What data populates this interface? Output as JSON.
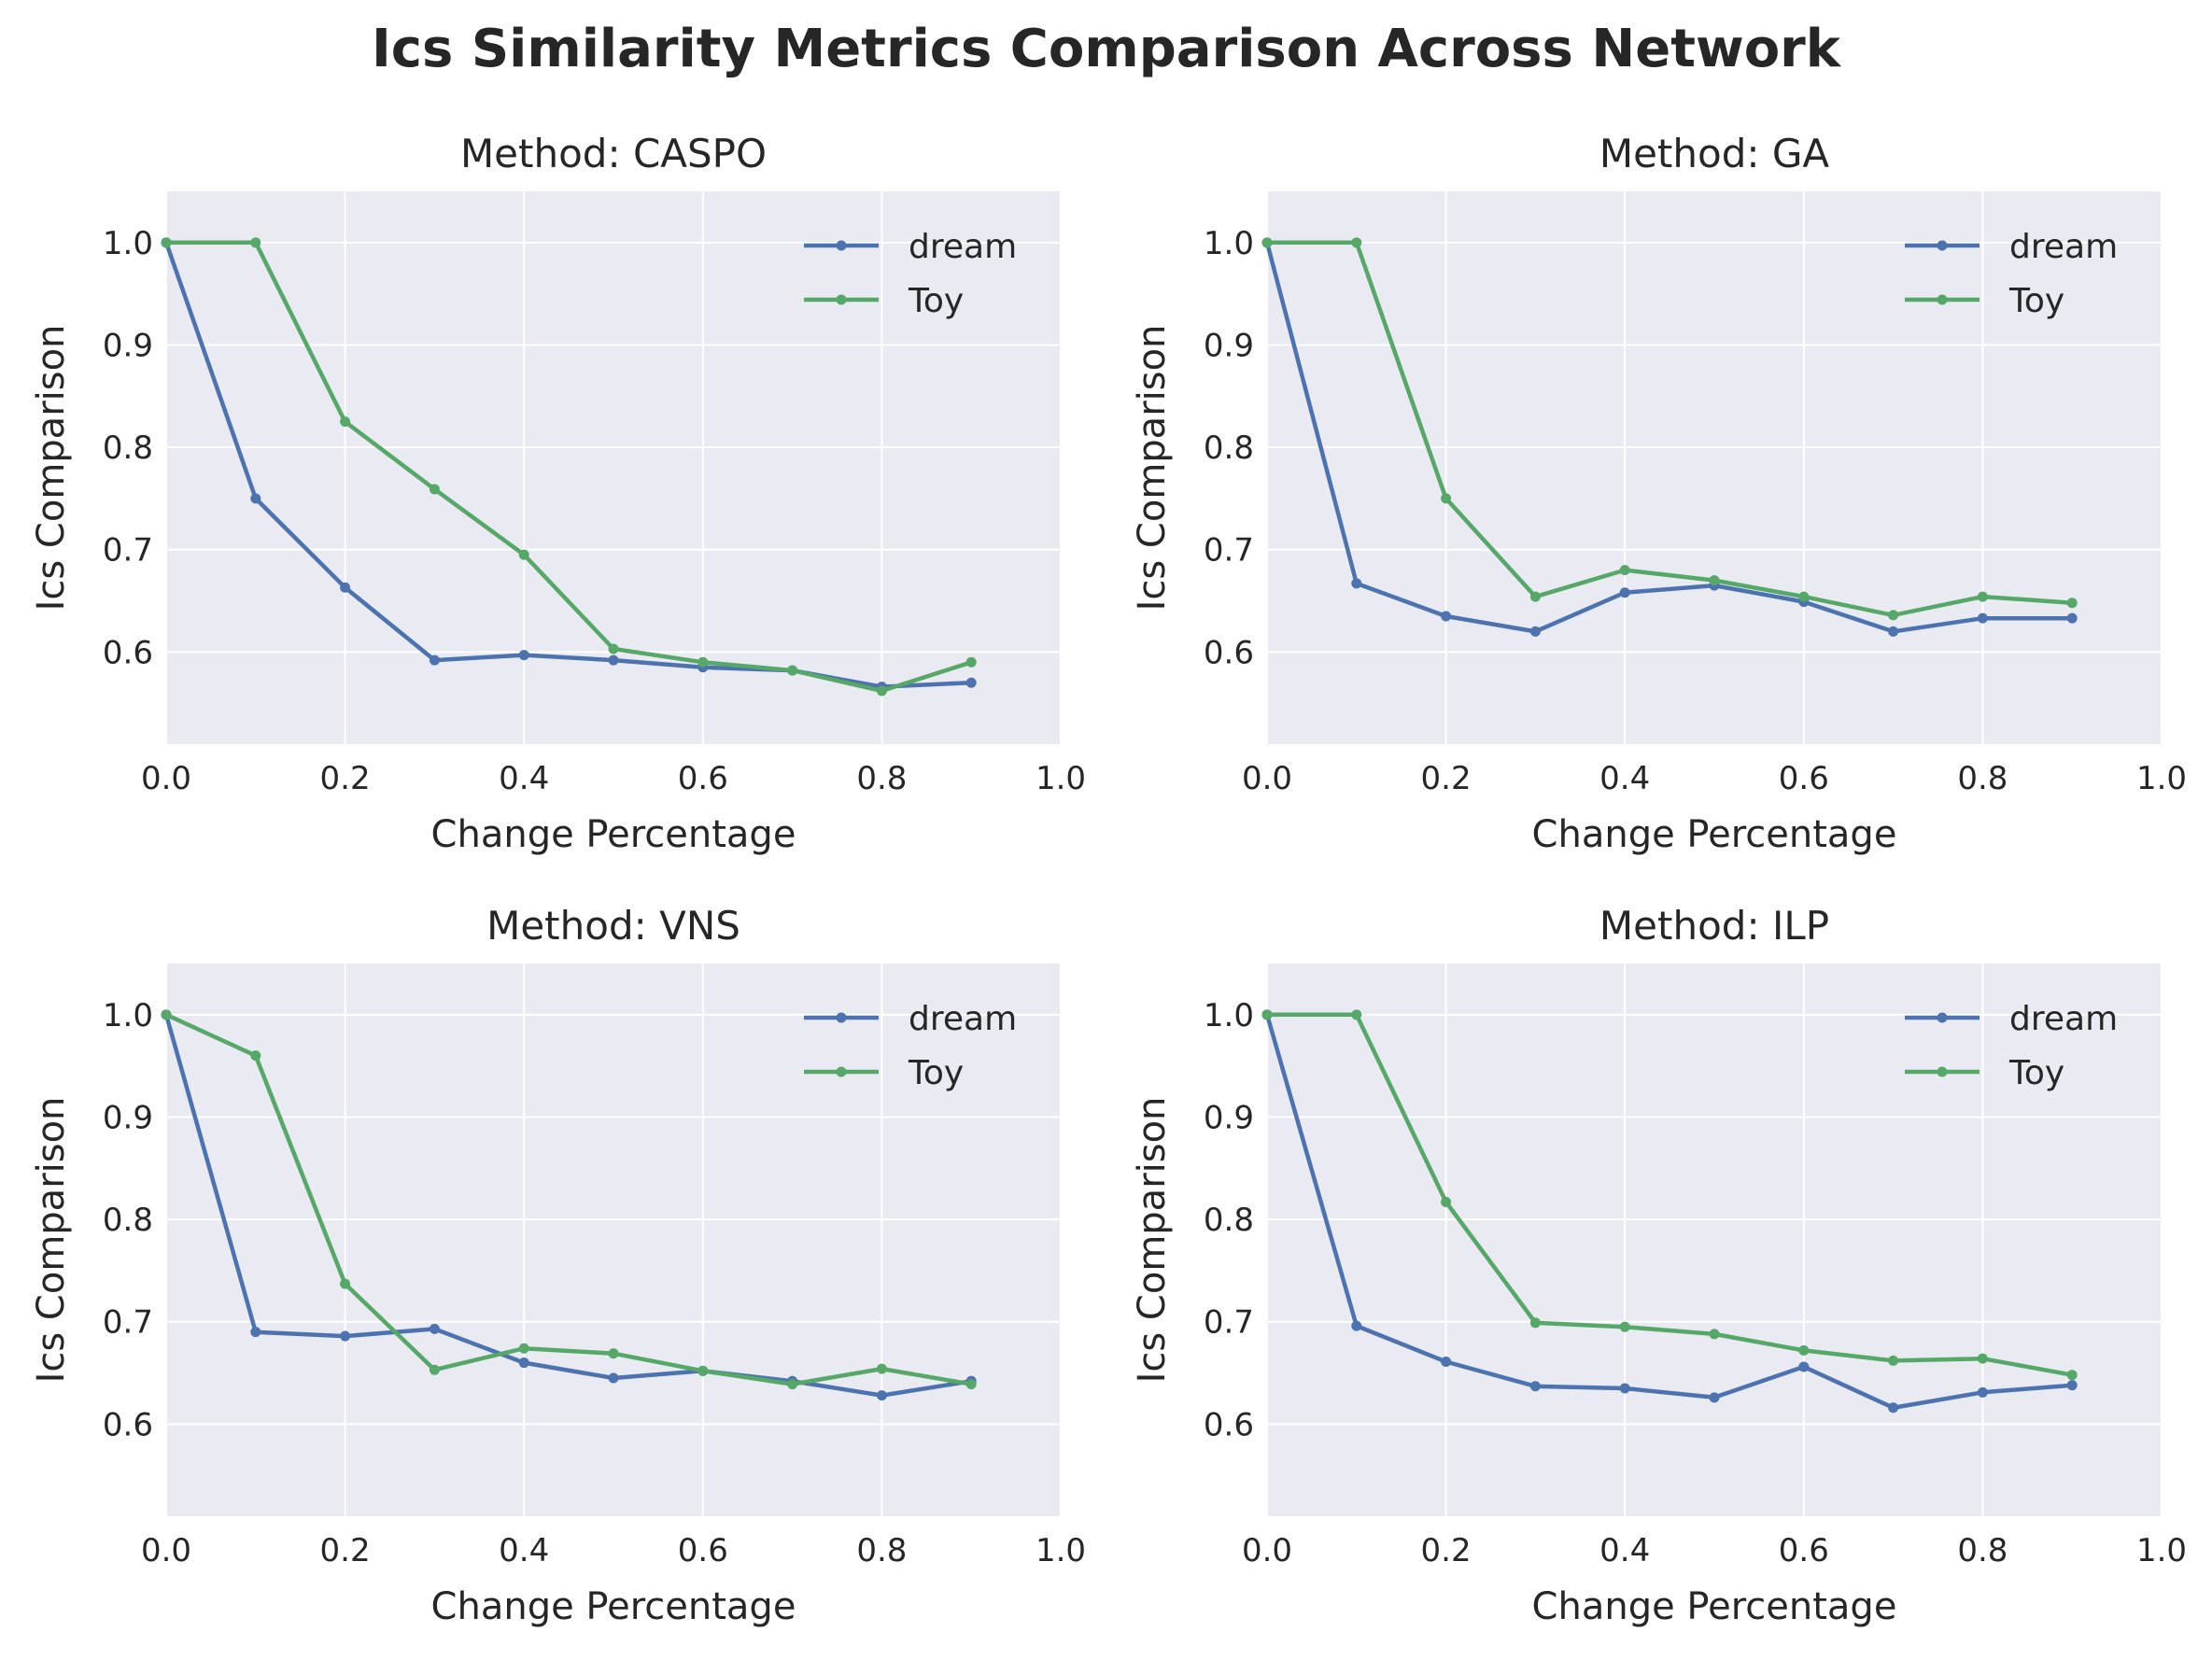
{
  "figure": {
    "title": "Ics Similarity Metrics Comparison Across Network",
    "colors": {
      "plot_bg": "#EAEAF2",
      "grid": "#ffffff",
      "text": "#262626"
    }
  },
  "chart_data": [
    {
      "type": "line",
      "title": "Method: CASPO",
      "xlabel": "Change Percentage",
      "ylabel": "Ics Comparison",
      "xlim": [
        0.0,
        1.0
      ],
      "ylim": [
        0.51,
        1.05
      ],
      "xticks": [
        "0.0",
        "0.2",
        "0.4",
        "0.6",
        "0.8",
        "1.0"
      ],
      "yticks": [
        "0.6",
        "0.7",
        "0.8",
        "0.9",
        "1.0"
      ],
      "grid": true,
      "legend": "upper right",
      "x": [
        0.0,
        0.1,
        0.2,
        0.3,
        0.4,
        0.5,
        0.6,
        0.7,
        0.8,
        0.9
      ],
      "series": [
        {
          "name": "dream",
          "color": "#4C72B0",
          "values": [
            1.0,
            0.75,
            0.663,
            0.592,
            0.597,
            0.592,
            0.585,
            0.582,
            0.566,
            0.57
          ]
        },
        {
          "name": "Toy",
          "color": "#55A868",
          "values": [
            1.0,
            1.0,
            0.825,
            0.759,
            0.695,
            0.603,
            0.59,
            0.582,
            0.562,
            0.59
          ]
        }
      ]
    },
    {
      "type": "line",
      "title": "Method: GA",
      "xlabel": "Change Percentage",
      "ylabel": "Ics Comparison",
      "xlim": [
        0.0,
        1.0
      ],
      "ylim": [
        0.51,
        1.05
      ],
      "xticks": [
        "0.0",
        "0.2",
        "0.4",
        "0.6",
        "0.8",
        "1.0"
      ],
      "yticks": [
        "0.6",
        "0.7",
        "0.8",
        "0.9",
        "1.0"
      ],
      "grid": true,
      "legend": "upper right",
      "x": [
        0.0,
        0.1,
        0.2,
        0.3,
        0.4,
        0.5,
        0.6,
        0.7,
        0.8,
        0.9
      ],
      "series": [
        {
          "name": "dream",
          "color": "#4C72B0",
          "values": [
            1.0,
            0.667,
            0.635,
            0.62,
            0.658,
            0.665,
            0.649,
            0.62,
            0.633,
            0.633
          ]
        },
        {
          "name": "Toy",
          "color": "#55A868",
          "values": [
            1.0,
            1.0,
            0.75,
            0.654,
            0.68,
            0.67,
            0.654,
            0.636,
            0.654,
            0.648
          ]
        }
      ]
    },
    {
      "type": "line",
      "title": "Method: VNS",
      "xlabel": "Change Percentage",
      "ylabel": "Ics Comparison",
      "xlim": [
        0.0,
        1.0
      ],
      "ylim": [
        0.51,
        1.05
      ],
      "xticks": [
        "0.0",
        "0.2",
        "0.4",
        "0.6",
        "0.8",
        "1.0"
      ],
      "yticks": [
        "0.6",
        "0.7",
        "0.8",
        "0.9",
        "1.0"
      ],
      "grid": true,
      "legend": "upper right",
      "x": [
        0.0,
        0.1,
        0.2,
        0.3,
        0.4,
        0.5,
        0.6,
        0.7,
        0.8,
        0.9
      ],
      "series": [
        {
          "name": "dream",
          "color": "#4C72B0",
          "values": [
            1.0,
            0.69,
            0.686,
            0.693,
            0.66,
            0.645,
            0.652,
            0.642,
            0.628,
            0.642
          ]
        },
        {
          "name": "Toy",
          "color": "#55A868",
          "values": [
            1.0,
            0.96,
            0.737,
            0.653,
            0.674,
            0.669,
            0.652,
            0.639,
            0.654,
            0.639
          ]
        }
      ]
    },
    {
      "type": "line",
      "title": "Method: ILP",
      "xlabel": "Change Percentage",
      "ylabel": "Ics Comparison",
      "xlim": [
        0.0,
        1.0
      ],
      "ylim": [
        0.51,
        1.05
      ],
      "xticks": [
        "0.0",
        "0.2",
        "0.4",
        "0.6",
        "0.8",
        "1.0"
      ],
      "yticks": [
        "0.6",
        "0.7",
        "0.8",
        "0.9",
        "1.0"
      ],
      "grid": true,
      "legend": "upper right",
      "x": [
        0.0,
        0.1,
        0.2,
        0.3,
        0.4,
        0.5,
        0.6,
        0.7,
        0.8,
        0.9
      ],
      "series": [
        {
          "name": "dream",
          "color": "#4C72B0",
          "values": [
            1.0,
            0.696,
            0.661,
            0.637,
            0.635,
            0.626,
            0.656,
            0.616,
            0.631,
            0.638
          ]
        },
        {
          "name": "Toy",
          "color": "#55A868",
          "values": [
            1.0,
            1.0,
            0.817,
            0.699,
            0.695,
            0.688,
            0.672,
            0.662,
            0.664,
            0.648
          ]
        }
      ]
    }
  ]
}
